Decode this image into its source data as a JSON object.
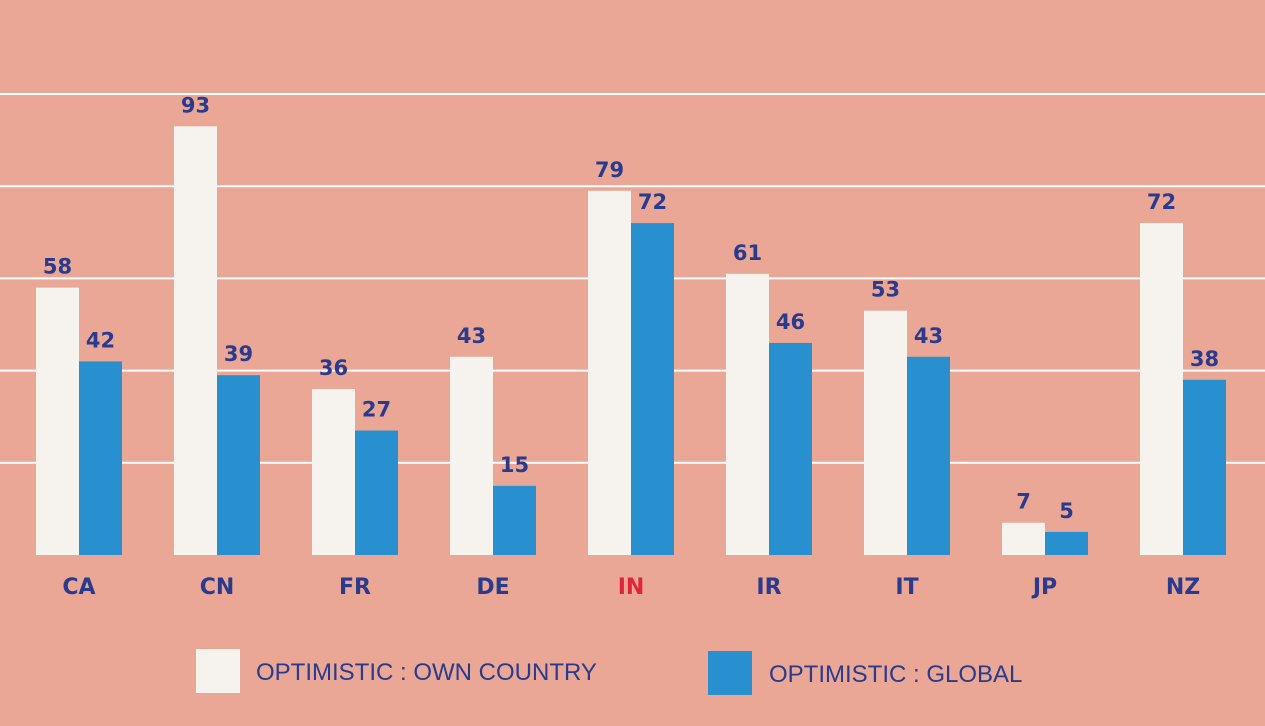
{
  "chart_data": {
    "type": "bar",
    "categories": [
      "CA",
      "CN",
      "FR",
      "DE",
      "IN",
      "IR",
      "IT",
      "JP",
      "NZ"
    ],
    "highlight_category": "IN",
    "series": [
      {
        "name": "OPTIMISTIC : OWN COUNTRY",
        "values": [
          58,
          93,
          36,
          43,
          79,
          61,
          53,
          7,
          72
        ]
      },
      {
        "name": "OPTIMISTIC : GLOBAL",
        "values": [
          42,
          39,
          27,
          15,
          72,
          46,
          43,
          5,
          38
        ]
      }
    ],
    "ylim": [
      0,
      100
    ],
    "grid": true,
    "legend_position": "bottom",
    "colors": {
      "background": "#eba795",
      "own_country": "#f6f3ef",
      "global": "#2990d0",
      "label_text": "#2a3a8c",
      "highlight_text": "#e0243a",
      "grid": "#ffffff"
    }
  }
}
